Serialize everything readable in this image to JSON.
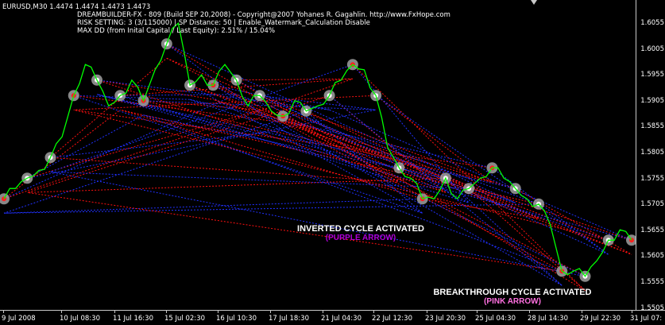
{
  "header": {
    "symbol_line": "EURUSD,M30  1.4474 1.4474 1.4473 1.4473",
    "line1": "DREAMBUILDER-FX - 809 (Build SEP 20,2008) - Copyright@2007 Yohanes R. Gagahlin. http://www.FxHope.com",
    "line2": "RISK SETTING: 3 (3/115000) | SP Distance: 50 | Enable_Watermark_Calculation Disable",
    "line3": "MAX DD (from Inital Capital / Last Equity): 2.51% / 15.04%"
  },
  "price_axis": [
    "1.6055",
    "1.6005",
    "1.5955",
    "1.5905",
    "1.5855",
    "1.5805",
    "1.5755",
    "1.5705",
    "1.5655",
    "1.5605",
    "1.5555",
    "1.5505"
  ],
  "time_axis": [
    "9 Jul 2008",
    "10 Jul 08:30",
    "11 Jul 16:30",
    "15 Jul 02:30",
    "16 Jul 10:30",
    "17 Jul 18:30",
    "21 Jul 04:30",
    "22 Jul 12:30",
    "23 Jul 20:30",
    "25 Jul 04:30",
    "28 Jul 14:30",
    "29 Jul 22:30",
    "31 Jul 07:"
  ],
  "annotations": {
    "inverted": {
      "line1": "INVERTED CYCLE ACTIVATED",
      "line2": "(PURPLE ARROW)",
      "color2": "#b000d8"
    },
    "breakthrough": {
      "line1": "BREAKTHROUGH  CYCLE ACTIVATED",
      "line2": "(PINK ARROW)",
      "color2": "#ff70e0"
    }
  },
  "colors": {
    "price_line": "#00ff00",
    "buy_links": "#2030ff",
    "sell_links": "#ff1010",
    "marker_halo": "#a0a0a0",
    "axis": "#c8c8c8"
  },
  "chart_data": {
    "type": "line",
    "y_range": [
      1.5485,
      1.6085
    ],
    "x_categories": [
      "9 Jul 2008",
      "10 Jul 08:30",
      "11 Jul 16:30",
      "15 Jul 02:30",
      "16 Jul 10:30",
      "17 Jul 18:30",
      "21 Jul 04:30",
      "22 Jul 12:30",
      "23 Jul 20:30",
      "25 Jul 04:30",
      "28 Jul 14:30",
      "29 Jul 22:30",
      "31 Jul 07:"
    ],
    "price": [
      1.57,
      1.572,
      1.574,
      1.5755,
      1.578,
      1.582,
      1.59,
      1.596,
      1.593,
      1.588,
      1.59,
      1.593,
      1.589,
      1.595,
      1.6,
      1.604,
      1.592,
      1.594,
      1.592,
      1.596,
      1.593,
      1.588,
      1.59,
      1.587,
      1.586,
      1.589,
      1.587,
      1.588,
      1.59,
      1.593,
      1.596,
      1.595,
      1.59,
      1.58,
      1.576,
      1.574,
      1.57,
      1.57,
      1.574,
      1.57,
      1.572,
      1.574,
      1.576,
      1.574,
      1.572,
      1.57,
      1.569,
      1.565,
      1.556,
      1.556,
      1.555,
      1.558,
      1.562,
      1.564,
      1.562
    ]
  }
}
